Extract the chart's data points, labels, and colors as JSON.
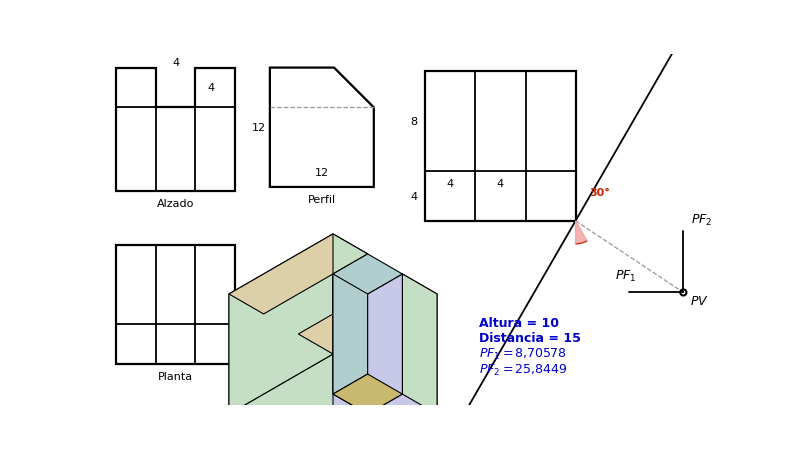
{
  "bg_color": "#ffffff",
  "line_color": "#000000",
  "blue_color": "#0000cc",
  "red_color": "#cc2200",
  "gray_color": "#999999",
  "pink_fill": "#f0a0a0",
  "alzado_label": "Alzado",
  "perfil_label": "Perfil",
  "planta_label": "Planta",
  "angle_label": "30°",
  "pf1_label": "$PF_1$",
  "pf2_label": "$PF_2$",
  "pv_label": "$PV$",
  "altura_text": "Altura = 10",
  "distancia_text": "Distancia = 15",
  "pf1_val_text": "$PF_1 = 8{,}70578$",
  "pf2_val_text": "$PF_2 = 25{,}8449$",
  "iso_green": "#c5dfc5",
  "iso_blue": "#c8c8e8",
  "iso_beige": "#ddd0a8",
  "iso_teal": "#b0cece",
  "iso_tan": "#c8b870"
}
